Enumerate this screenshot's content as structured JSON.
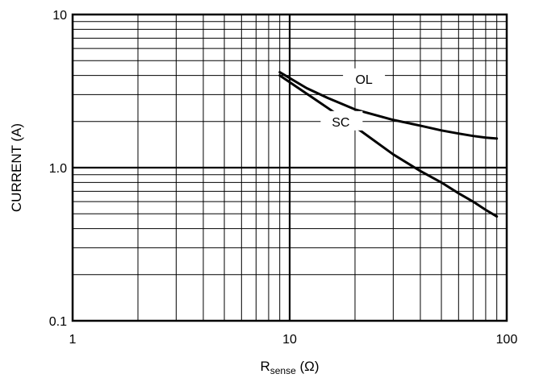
{
  "chart_data": {
    "type": "line",
    "title": "",
    "x_scale": "log",
    "y_scale": "log",
    "xlim": [
      1,
      100
    ],
    "ylim": [
      0.1,
      10
    ],
    "grid": true,
    "xlabel": {
      "main": "R",
      "subscript": "sense",
      "unit": " (Ω)"
    },
    "ylabel": "CURRENT (A)",
    "x_tick_labels": [
      {
        "value": 1,
        "label": "1"
      },
      {
        "value": 10,
        "label": "10"
      },
      {
        "value": 100,
        "label": "100"
      }
    ],
    "y_tick_labels": [
      {
        "value": 0.1,
        "label": "0.1"
      },
      {
        "value": 1,
        "label": "1.0"
      },
      {
        "value": 10,
        "label": "10"
      }
    ],
    "series": [
      {
        "name": "OL",
        "color": "#000000",
        "x": [
          9,
          12,
          15,
          20,
          30,
          40,
          50,
          60,
          70,
          80,
          90
        ],
        "y": [
          4.2,
          3.3,
          2.85,
          2.4,
          2.05,
          1.88,
          1.75,
          1.67,
          1.61,
          1.57,
          1.55
        ]
      },
      {
        "name": "SC",
        "color": "#000000",
        "x": [
          9,
          15,
          20,
          30,
          40,
          50,
          60,
          70,
          80,
          90
        ],
        "y": [
          4.0,
          2.45,
          1.85,
          1.22,
          0.95,
          0.8,
          0.68,
          0.6,
          0.53,
          0.48
        ]
      }
    ]
  }
}
